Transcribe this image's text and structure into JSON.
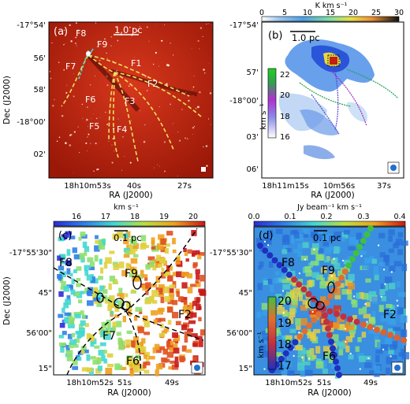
{
  "panels": {
    "a": {
      "label": "(a)",
      "scale": "1.0 pc",
      "ra_ticks": [
        "18h10m53s",
        "40s",
        "27s"
      ],
      "dec_ticks": [
        "-17°54'",
        "56'",
        "58'",
        "-18°00'",
        "02'"
      ],
      "xlabel": "RA (J2000)",
      "ylabel": "Dec (J2000)",
      "filaments": [
        "F8",
        "F9",
        "F7",
        "F1",
        "F2",
        "F6",
        "F3",
        "F5",
        "F4"
      ]
    },
    "b": {
      "label": "(b)",
      "scale": "1.0 pc",
      "colorbar_title": "K km s⁻¹",
      "colorbar_ticks": [
        "0",
        "5",
        "10",
        "15",
        "20",
        "25",
        "30"
      ],
      "inset_ticks": [
        "22",
        "20",
        "18",
        "16"
      ],
      "inset_unit": "km s⁻¹",
      "ra_ticks": [
        "18h11m15s",
        "10m56s",
        "37s"
      ],
      "dec_ticks": [
        "-17°54'",
        "57'",
        "-18°00'",
        "03'",
        "06'"
      ],
      "xlabel": "RA (J2000)"
    },
    "c": {
      "label": "(c)",
      "scale": "0.1 pc",
      "colorbar_title": "km s⁻¹",
      "colorbar_ticks": [
        "16",
        "17",
        "18",
        "19",
        "20"
      ],
      "ra_ticks": [
        "18h10m52s",
        "51s",
        "49s"
      ],
      "dec_ticks": [
        "-17°55'30\"",
        "45\"",
        "56'00\"",
        "15\""
      ],
      "xlabel": "RA (J2000)",
      "ylabel": "Dec (J2000)",
      "filaments": [
        "F8",
        "F9",
        "F2",
        "F7",
        "F6"
      ]
    },
    "d": {
      "label": "(d)",
      "scale": "0.1 pc",
      "colorbar_title": "Jy beam⁻¹ km s⁻¹",
      "colorbar_ticks": [
        "0.0",
        "0.1",
        "0.2",
        "0.3",
        "0.4"
      ],
      "inset_ticks": [
        "20",
        "19",
        "18",
        "17"
      ],
      "inset_unit": "km s⁻¹",
      "ra_ticks": [
        "18h10m52s",
        "51s",
        "49s"
      ],
      "dec_ticks": [
        "-17°55'30\"",
        "45\"",
        "56'00\"",
        "15\""
      ],
      "xlabel": "RA (J2000)",
      "filaments": [
        "F8",
        "F9",
        "F2",
        "F6"
      ]
    }
  },
  "colors": {
    "jet_blue": "#1f2fbf",
    "jet_red": "#d62a1a",
    "spitzer_red": "#b81e0e",
    "filament_yellow": "#f0e060",
    "filament_cyan": "#40e0e0"
  }
}
